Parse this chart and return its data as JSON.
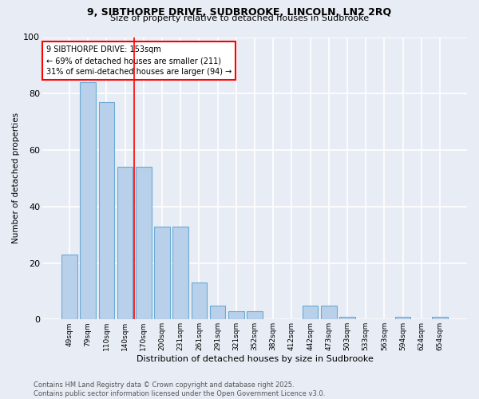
{
  "title1": "9, SIBTHORPE DRIVE, SUDBROOKE, LINCOLN, LN2 2RQ",
  "title2": "Size of property relative to detached houses in Sudbrooke",
  "xlabel": "Distribution of detached houses by size in Sudbrooke",
  "ylabel": "Number of detached properties",
  "categories": [
    "49sqm",
    "79sqm",
    "110sqm",
    "140sqm",
    "170sqm",
    "200sqm",
    "231sqm",
    "261sqm",
    "291sqm",
    "321sqm",
    "352sqm",
    "382sqm",
    "412sqm",
    "442sqm",
    "473sqm",
    "503sqm",
    "533sqm",
    "563sqm",
    "594sqm",
    "624sqm",
    "654sqm"
  ],
  "values": [
    23,
    84,
    77,
    54,
    54,
    33,
    33,
    13,
    5,
    3,
    3,
    0,
    0,
    5,
    5,
    1,
    0,
    0,
    1,
    0,
    1
  ],
  "bar_color": "#b8d0ea",
  "bar_edge_color": "#6aaad4",
  "background_color": "#e8edf5",
  "grid_color": "#ffffff",
  "red_line_x": 3.5,
  "annotation_text": "9 SIBTHORPE DRIVE: 153sqm\n← 69% of detached houses are smaller (211)\n31% of semi-detached houses are larger (94) →",
  "footer": "Contains HM Land Registry data © Crown copyright and database right 2025.\nContains public sector information licensed under the Open Government Licence v3.0.",
  "ylim": [
    0,
    100
  ],
  "yticks": [
    0,
    20,
    40,
    60,
    80,
    100
  ]
}
